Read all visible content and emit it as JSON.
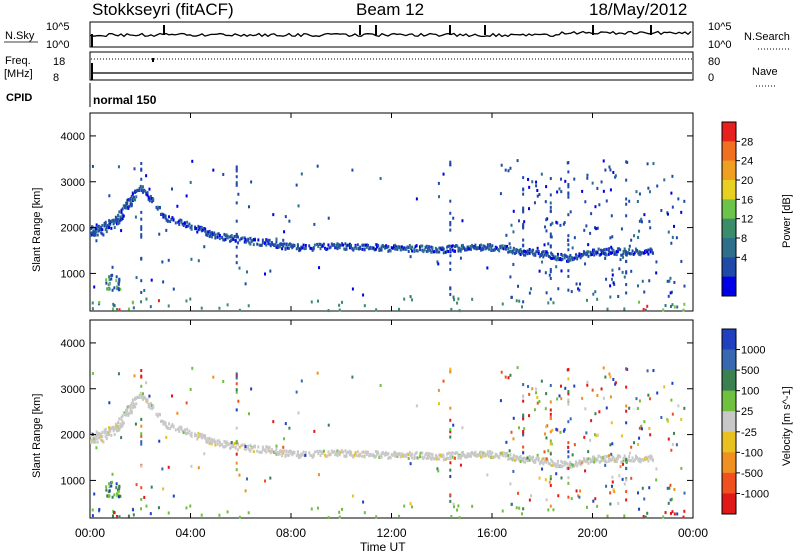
{
  "header": {
    "station": "Stokkseyri (fitACF)",
    "beam": "Beam 12",
    "date": "18/May/2012"
  },
  "strips": {
    "nsky_label": "N.Sky",
    "nsky_ticks": [
      "10^5",
      "10^0"
    ],
    "nsearch_label": "N.Search",
    "freq_label": "Freq.",
    "freq_unit": "[MHz]",
    "freq_ticks": [
      "18",
      "8"
    ],
    "nave_label": "Nave",
    "nave_ticks": [
      "80",
      "0"
    ],
    "cpid_label": "CPID",
    "cpid_value": "normal 150"
  },
  "colors": {
    "power_scale": [
      "#0000e6",
      "#1f4aa8",
      "#2e6f8c",
      "#3a8c6a",
      "#6cc44a",
      "#e8d020",
      "#f0a020",
      "#f07020",
      "#e82020"
    ],
    "velocity_scale": [
      "#2040c0",
      "#3868b0",
      "#3a8050",
      "#70c040",
      "#c8c8c8",
      "#e8c020",
      "#f09020",
      "#f05020",
      "#e01818"
    ]
  },
  "chart_data": [
    {
      "type": "scatter",
      "title": "",
      "xlabel": "Time UT",
      "ylabel": "Slant Range [km]",
      "xlim": [
        "00:00",
        "24:00"
      ],
      "xticks": [
        "00:00",
        "04:00",
        "08:00",
        "12:00",
        "16:00",
        "20:00",
        "00:00"
      ],
      "ylim": [
        180,
        4500
      ],
      "yticks": [
        "1000",
        "2000",
        "3000",
        "4000"
      ],
      "colorbar": {
        "label": "Power [dB]",
        "ticks": [
          "4",
          "8",
          "12",
          "16",
          "20",
          "24",
          "28"
        ]
      },
      "main_echo_band": {
        "x_hours": [
          0,
          0.5,
          1,
          1.5,
          2,
          3,
          4,
          5,
          6,
          7,
          8,
          9,
          10,
          11,
          12,
          13,
          14,
          15,
          16,
          17,
          18,
          19,
          20,
          21,
          22
        ],
        "y_km": [
          1950,
          2000,
          2150,
          2550,
          2900,
          2250,
          2050,
          1850,
          1750,
          1700,
          1600,
          1600,
          1620,
          1600,
          1580,
          1570,
          1550,
          1600,
          1600,
          1520,
          1450,
          1350,
          1500,
          1500,
          1500
        ]
      }
    },
    {
      "type": "scatter",
      "title": "",
      "xlabel": "Time UT",
      "ylabel": "Slant Range [km]",
      "xlim": [
        "00:00",
        "24:00"
      ],
      "xticks": [
        "00:00",
        "04:00",
        "08:00",
        "12:00",
        "16:00",
        "20:00",
        "00:00"
      ],
      "ylim": [
        180,
        4500
      ],
      "yticks": [
        "1000",
        "2000",
        "3000",
        "4000"
      ],
      "colorbar": {
        "label": "Velocity [m s^-1]",
        "ticks": [
          "1000",
          "500",
          "100",
          "25",
          "-25",
          "-100",
          "-500",
          "-1000"
        ]
      }
    }
  ],
  "axis": {
    "xlabel": "Time UT"
  }
}
